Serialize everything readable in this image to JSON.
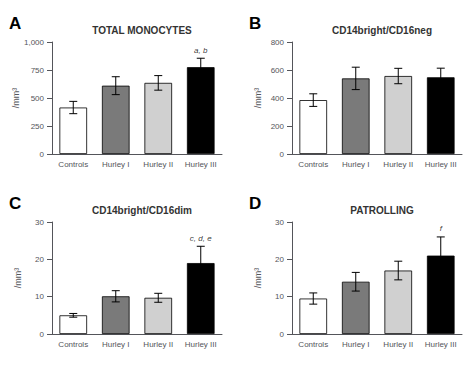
{
  "chart_data": [
    {
      "type": "bar",
      "label": "A",
      "title": "TOTAL MONOCYTES",
      "ylabel": "/mm³",
      "categories": [
        "Controls",
        "Hurley I",
        "Hurley II",
        "Hurley III"
      ],
      "values": [
        415,
        610,
        635,
        775
      ],
      "errors": [
        55,
        80,
        65,
        80
      ],
      "colors": [
        "white",
        "#7a7a7a",
        "#d0d0d0",
        "black"
      ],
      "ylim": [
        0,
        1000
      ],
      "yticks": [
        0,
        250,
        500,
        750,
        1000
      ],
      "grid": false,
      "annotations": [
        {
          "text": "a, b",
          "category": "Hurley III"
        }
      ]
    },
    {
      "type": "bar",
      "label": "B",
      "title": "CD14bright/CD16neg",
      "ylabel": "/mm³",
      "categories": [
        "Controls",
        "Hurley I",
        "Hurley II",
        "Hurley III"
      ],
      "values": [
        385,
        540,
        557,
        548
      ],
      "errors": [
        45,
        80,
        55,
        65
      ],
      "colors": [
        "white",
        "#7a7a7a",
        "#d0d0d0",
        "black"
      ],
      "ylim": [
        0,
        800
      ],
      "yticks": [
        0,
        200,
        400,
        600,
        800
      ],
      "grid": false,
      "annotations": []
    },
    {
      "type": "bar",
      "label": "C",
      "title": "CD14bright/CD16dim",
      "ylabel": "/mm³",
      "categories": [
        "Controls",
        "Hurley I",
        "Hurley II",
        "Hurley III"
      ],
      "values": [
        5.0,
        10.1,
        9.7,
        19.0
      ],
      "errors": [
        0.5,
        1.5,
        1.2,
        4.5
      ],
      "colors": [
        "white",
        "#7a7a7a",
        "#d0d0d0",
        "black"
      ],
      "ylim": [
        0,
        30
      ],
      "yticks": [
        0,
        10,
        20,
        30
      ],
      "grid": false,
      "annotations": [
        {
          "text": "c, d, e",
          "category": "Hurley III"
        }
      ]
    },
    {
      "type": "bar",
      "label": "D",
      "title": "PATROLLING",
      "ylabel": "/mm³",
      "categories": [
        "Controls",
        "Hurley I",
        "Hurley II",
        "Hurley III"
      ],
      "values": [
        9.5,
        14.0,
        17.0,
        21.0
      ],
      "errors": [
        1.5,
        2.5,
        2.5,
        5.0
      ],
      "colors": [
        "white",
        "#7a7a7a",
        "#d0d0d0",
        "black"
      ],
      "ylim": [
        0,
        30
      ],
      "yticks": [
        0,
        10,
        20,
        30
      ],
      "grid": false,
      "annotations": [
        {
          "text": "f",
          "category": "Hurley III"
        }
      ]
    }
  ]
}
